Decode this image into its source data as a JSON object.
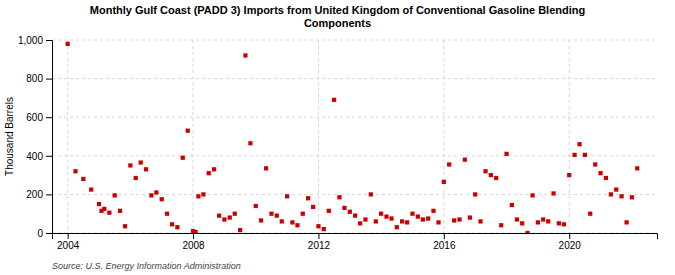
{
  "chart_data": {
    "type": "scatter",
    "title": "Monthly Gulf Coast (PADD 3) Imports from United Kingdom of Conventional Gasoline Blending\nComponents",
    "ylabel": "Thousand Barrels",
    "source": "Source: U.S. Energy Information Administration",
    "color": "#cc0000",
    "marker": "square",
    "grid": true,
    "xlim": [
      2003.5,
      2022.8
    ],
    "xticks": [
      2004,
      2008,
      2012,
      2016,
      2020
    ],
    "ylim": [
      0,
      1000
    ],
    "yticks": [
      0,
      200,
      400,
      600,
      800,
      {
        "value": 1000,
        "label": "1,000"
      }
    ],
    "x": [
      2004.0,
      2004.25,
      2004.5,
      2004.75,
      2005.0,
      2005.08,
      2005.17,
      2005.33,
      2005.5,
      2005.67,
      2005.83,
      2006.0,
      2006.17,
      2006.33,
      2006.5,
      2006.67,
      2006.83,
      2007.0,
      2007.17,
      2007.33,
      2007.5,
      2007.67,
      2007.83,
      2008.0,
      2008.08,
      2008.17,
      2008.33,
      2008.5,
      2008.67,
      2008.83,
      2009.0,
      2009.17,
      2009.33,
      2009.5,
      2009.67,
      2009.83,
      2010.0,
      2010.17,
      2010.33,
      2010.5,
      2010.67,
      2010.83,
      2011.0,
      2011.17,
      2011.33,
      2011.5,
      2011.67,
      2011.83,
      2012.0,
      2012.17,
      2012.33,
      2012.5,
      2012.67,
      2012.83,
      2013.0,
      2013.17,
      2013.33,
      2013.5,
      2013.67,
      2013.83,
      2014.0,
      2014.17,
      2014.33,
      2014.5,
      2014.67,
      2014.83,
      2015.0,
      2015.17,
      2015.33,
      2015.5,
      2015.67,
      2015.83,
      2016.0,
      2016.17,
      2016.33,
      2016.5,
      2016.67,
      2016.83,
      2017.0,
      2017.17,
      2017.33,
      2017.5,
      2017.67,
      2017.83,
      2018.0,
      2018.17,
      2018.33,
      2018.5,
      2018.67,
      2018.83,
      2019.0,
      2019.17,
      2019.33,
      2019.5,
      2019.67,
      2019.83,
      2020.0,
      2020.17,
      2020.33,
      2020.5,
      2020.67,
      2020.83,
      2021.0,
      2021.17,
      2021.33,
      2021.5,
      2021.67,
      2021.83,
      2022.0,
      2022.17
    ],
    "values": [
      980,
      320,
      280,
      225,
      150,
      115,
      125,
      105,
      195,
      115,
      35,
      350,
      285,
      365,
      330,
      195,
      210,
      175,
      100,
      45,
      30,
      390,
      530,
      10,
      5,
      190,
      200,
      310,
      330,
      90,
      70,
      80,
      100,
      15,
      920,
      465,
      140,
      65,
      335,
      100,
      90,
      60,
      190,
      55,
      40,
      100,
      180,
      135,
      35,
      20,
      115,
      690,
      185,
      130,
      110,
      90,
      50,
      70,
      200,
      60,
      100,
      85,
      75,
      30,
      60,
      55,
      100,
      85,
      70,
      75,
      115,
      55,
      265,
      355,
      65,
      70,
      380,
      80,
      200,
      60,
      320,
      300,
      285,
      40,
      410,
      145,
      70,
      50,
      0,
      195,
      55,
      70,
      60,
      205,
      50,
      45,
      300,
      405,
      460,
      405,
      100,
      355,
      310,
      285,
      200,
      225,
      190,
      55,
      185,
      335
    ]
  }
}
